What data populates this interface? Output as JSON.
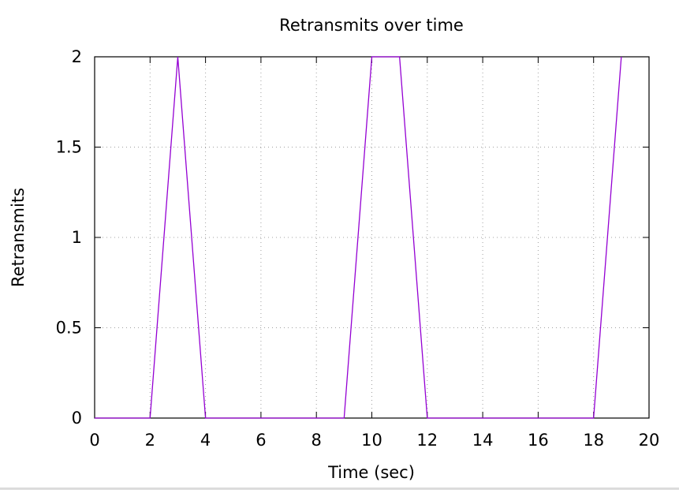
{
  "chart_data": {
    "type": "line",
    "title": "Retransmits over time",
    "xlabel": "Time (sec)",
    "ylabel": "Retransmits",
    "xlim": [
      0,
      20
    ],
    "ylim": [
      0,
      2
    ],
    "xticks": [
      0,
      2,
      4,
      6,
      8,
      10,
      12,
      14,
      16,
      18,
      20
    ],
    "xtick_labels": [
      "0",
      "2",
      "4",
      "6",
      "8",
      "10",
      "12",
      "14",
      "16",
      "18",
      "20"
    ],
    "yticks": [
      0,
      0.5,
      1,
      1.5,
      2
    ],
    "ytick_labels": [
      "0",
      "0.5",
      "1",
      "1.5",
      "2"
    ],
    "grid": true,
    "grid_style": "dotted",
    "series": [
      {
        "color": "#9400d3",
        "x": [
          0,
          1,
          2,
          3,
          4,
          5,
          6,
          7,
          8,
          9,
          10,
          11,
          12,
          13,
          14,
          15,
          16,
          17,
          18,
          19
        ],
        "y": [
          0,
          0,
          0,
          2,
          0,
          0,
          0,
          0,
          0,
          0,
          2,
          2,
          0,
          0,
          0,
          0,
          0,
          0,
          0,
          2
        ]
      }
    ]
  }
}
